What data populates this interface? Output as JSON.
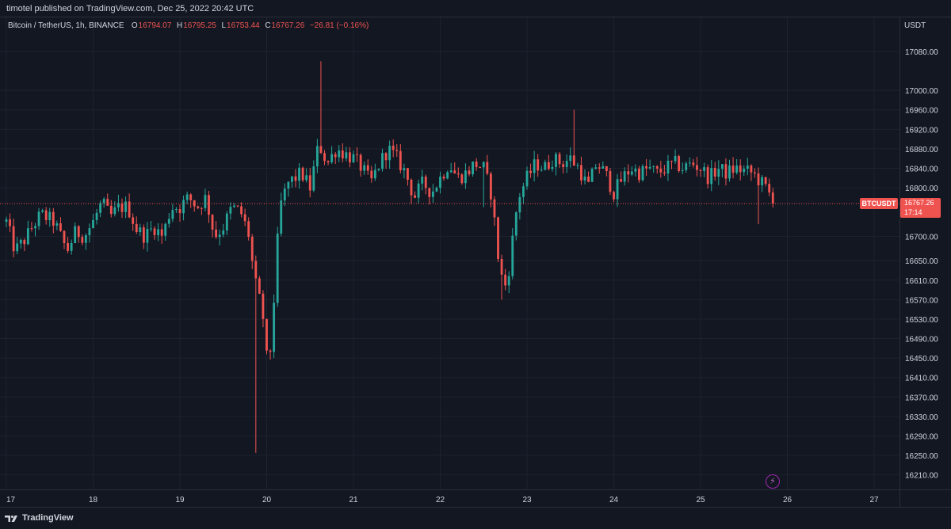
{
  "header": {
    "published_text": "timotel published on TradingView.com, Dec 25, 2022 20:42 UTC"
  },
  "legend": {
    "symbol_text": "Bitcoin / TetherUS, 1h, BINANCE",
    "open_label": "O",
    "open_value": "16794.07",
    "high_label": "H",
    "high_value": "16795.25",
    "low_label": "L",
    "low_value": "16753.44",
    "close_label": "C",
    "close_value": "16767.26",
    "change": "−26.81 (−0.16%)"
  },
  "price_axis": {
    "currency": "USDT",
    "last_price_tag": "BTCUSDT",
    "last_price": "16767.26",
    "countdown": "17:14"
  },
  "footer": {
    "brand": "TradingView"
  },
  "colors": {
    "up": "#26a69a",
    "down": "#ef5350",
    "background": "#131722",
    "grid": "#1e222d"
  },
  "icons": {
    "alert": "lightning-icon",
    "logo": "tradingview-logo-icon"
  },
  "chart_data": {
    "type": "candlestick",
    "title": "Bitcoin / TetherUS, 1h, BINANCE",
    "ylim": [
      16180,
      17150
    ],
    "y_ticks": [
      17080,
      17000,
      16960,
      16920,
      16880,
      16840,
      16800,
      16700,
      16650,
      16610,
      16570,
      16530,
      16490,
      16450,
      16410,
      16370,
      16330,
      16290,
      16250,
      16210
    ],
    "x_ticks": [
      "17",
      "18",
      "19",
      "20",
      "21",
      "22",
      "23",
      "24",
      "25",
      "26",
      "27"
    ],
    "x_tick_days": [
      17,
      18,
      19,
      20,
      21,
      22,
      23,
      24,
      25,
      26,
      27
    ],
    "x_range_days": [
      17,
      27.3
    ],
    "last_price_line": 16767.26,
    "keypoints": [
      [
        17.0,
        16730
      ],
      [
        17.1,
        16670
      ],
      [
        17.2,
        16690
      ],
      [
        17.3,
        16720
      ],
      [
        17.4,
        16745
      ],
      [
        17.55,
        16730
      ],
      [
        17.7,
        16670
      ],
      [
        17.8,
        16710
      ],
      [
        17.9,
        16700
      ],
      [
        18.0,
        16730
      ],
      [
        18.1,
        16770
      ],
      [
        18.2,
        16740
      ],
      [
        18.3,
        16760
      ],
      [
        18.4,
        16760
      ],
      [
        18.5,
        16715
      ],
      [
        18.6,
        16700
      ],
      [
        18.7,
        16720
      ],
      [
        18.8,
        16700
      ],
      [
        18.9,
        16760
      ],
      [
        19.0,
        16760
      ],
      [
        19.1,
        16780
      ],
      [
        19.2,
        16760
      ],
      [
        19.3,
        16780
      ],
      [
        19.4,
        16700
      ],
      [
        19.5,
        16720
      ],
      [
        19.6,
        16760
      ],
      [
        19.7,
        16750
      ],
      [
        19.8,
        16700
      ],
      [
        19.85,
        16620
      ],
      [
        19.9,
        16580
      ],
      [
        19.95,
        16550
      ],
      [
        20.0,
        16450
      ],
      [
        20.05,
        16470
      ],
      [
        20.1,
        16620
      ],
      [
        20.15,
        16760
      ],
      [
        20.25,
        16810
      ],
      [
        20.4,
        16830
      ],
      [
        20.5,
        16800
      ],
      [
        20.6,
        16890
      ],
      [
        20.7,
        16850
      ],
      [
        20.8,
        16880
      ],
      [
        20.9,
        16870
      ],
      [
        21.0,
        16860
      ],
      [
        21.1,
        16840
      ],
      [
        21.2,
        16810
      ],
      [
        21.3,
        16850
      ],
      [
        21.4,
        16880
      ],
      [
        21.5,
        16860
      ],
      [
        21.6,
        16830
      ],
      [
        21.7,
        16780
      ],
      [
        21.8,
        16810
      ],
      [
        21.9,
        16790
      ],
      [
        22.0,
        16820
      ],
      [
        22.1,
        16850
      ],
      [
        22.2,
        16820
      ],
      [
        22.3,
        16830
      ],
      [
        22.4,
        16850
      ],
      [
        22.5,
        16840
      ],
      [
        22.6,
        16780
      ],
      [
        22.65,
        16680
      ],
      [
        22.7,
        16620
      ],
      [
        22.75,
        16600
      ],
      [
        22.8,
        16640
      ],
      [
        22.85,
        16720
      ],
      [
        22.9,
        16780
      ],
      [
        23.0,
        16820
      ],
      [
        23.1,
        16850
      ],
      [
        23.2,
        16840
      ],
      [
        23.3,
        16860
      ],
      [
        23.4,
        16850
      ],
      [
        23.5,
        16860
      ],
      [
        23.6,
        16840
      ],
      [
        23.7,
        16800
      ],
      [
        23.8,
        16850
      ],
      [
        23.9,
        16830
      ],
      [
        24.0,
        16790
      ],
      [
        24.1,
        16820
      ],
      [
        24.2,
        16840
      ],
      [
        24.3,
        16830
      ],
      [
        24.4,
        16840
      ],
      [
        24.5,
        16830
      ],
      [
        24.6,
        16840
      ],
      [
        24.7,
        16850
      ],
      [
        24.8,
        16840
      ],
      [
        24.9,
        16850
      ],
      [
        25.0,
        16840
      ],
      [
        25.1,
        16820
      ],
      [
        25.2,
        16840
      ],
      [
        25.3,
        16830
      ],
      [
        25.4,
        16840
      ],
      [
        25.5,
        16835
      ],
      [
        25.6,
        16830
      ],
      [
        25.65,
        16820
      ],
      [
        25.7,
        16810
      ],
      [
        25.75,
        16800
      ],
      [
        25.8,
        16785
      ],
      [
        25.84,
        16767.26
      ]
    ],
    "notable_wicks": [
      {
        "day": 19.87,
        "low": 16255
      },
      {
        "day": 20.62,
        "high": 17060
      },
      {
        "day": 22.72,
        "low": 16570
      },
      {
        "day": 23.53,
        "high": 16960
      },
      {
        "day": 22.48,
        "low": 16760
      },
      {
        "day": 25.66,
        "low": 16725
      }
    ]
  }
}
